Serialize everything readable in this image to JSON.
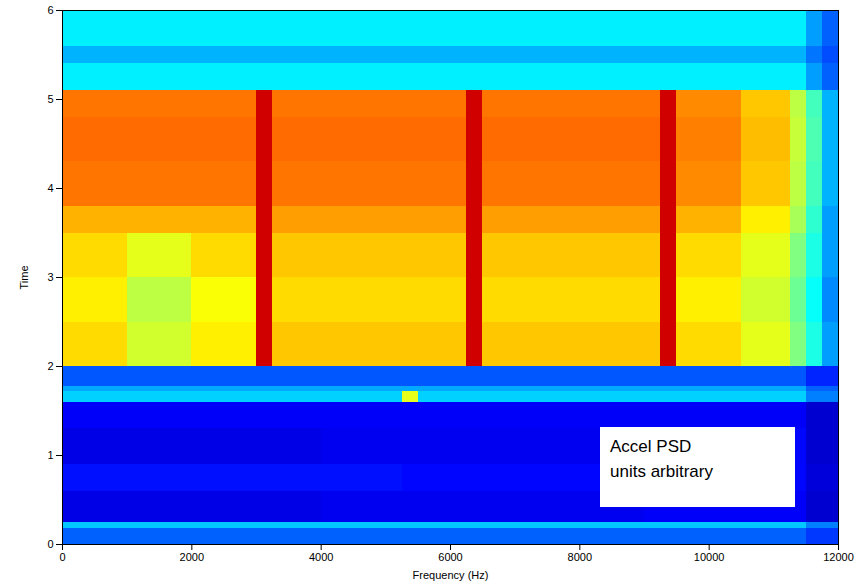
{
  "chart_data": {
    "type": "heatmap",
    "x_label": "Frequency (Hz)",
    "y_label": "Time",
    "annotations": [
      "Accel PSD",
      "units arbitrary"
    ],
    "xlim": [
      0,
      12000
    ],
    "ylim": [
      0,
      6
    ],
    "xticks": [
      0,
      2000,
      4000,
      6000,
      8000,
      10000,
      12000
    ],
    "yticks": [
      0,
      1,
      2,
      3,
      4,
      5,
      6
    ],
    "zlim": [
      0,
      100
    ],
    "x_edges": [
      0,
      250,
      500,
      750,
      1000,
      1250,
      1500,
      1750,
      2000,
      2250,
      2500,
      2750,
      3000,
      3250,
      3500,
      3750,
      4000,
      4250,
      4500,
      4750,
      5000,
      5250,
      5500,
      5750,
      6000,
      6250,
      6500,
      6750,
      7000,
      7250,
      7500,
      7750,
      8000,
      8250,
      8500,
      8750,
      9000,
      9250,
      9500,
      9750,
      10000,
      10250,
      10500,
      10750,
      11000,
      11250,
      11500,
      11750,
      12000
    ],
    "y_edges": [
      0,
      0.18,
      0.25,
      0.6,
      0.9,
      1.3,
      1.6,
      1.72,
      1.78,
      2.0,
      2.5,
      3.0,
      3.5,
      3.8,
      4.3,
      4.8,
      5.1,
      5.4,
      5.6,
      6
    ],
    "cells": [
      [
        22,
        22,
        22,
        22,
        22,
        22,
        22,
        22,
        22,
        22,
        22,
        22,
        22,
        22,
        22,
        22,
        22,
        22,
        22,
        22,
        22,
        22,
        22,
        22,
        22,
        22,
        22,
        22,
        22,
        22,
        22,
        22,
        22,
        22,
        22,
        22,
        22,
        22,
        22,
        22,
        22,
        22,
        22,
        22,
        22,
        22,
        18,
        18
      ],
      [
        32,
        32,
        32,
        32,
        32,
        32,
        32,
        32,
        32,
        32,
        32,
        32,
        32,
        32,
        32,
        32,
        32,
        32,
        32,
        32,
        32,
        32,
        32,
        32,
        32,
        32,
        32,
        32,
        32,
        32,
        32,
        32,
        32,
        32,
        32,
        32,
        32,
        32,
        32,
        32,
        32,
        32,
        32,
        32,
        32,
        32,
        25,
        25
      ],
      [
        10,
        10,
        10,
        10,
        10,
        10,
        10,
        10,
        10,
        10,
        10,
        10,
        10,
        10,
        10,
        10,
        11,
        11,
        11,
        11,
        11,
        11,
        11,
        11,
        11,
        11,
        11,
        11,
        11,
        11,
        11,
        11,
        11,
        11,
        11,
        11,
        12,
        12,
        12,
        12,
        12,
        12,
        12,
        12,
        12,
        12,
        8,
        8
      ],
      [
        14,
        14,
        14,
        14,
        14,
        14,
        14,
        14,
        14,
        14,
        14,
        14,
        14,
        14,
        14,
        14,
        14,
        14,
        14,
        14,
        14,
        13,
        13,
        13,
        13,
        13,
        13,
        13,
        13,
        13,
        13,
        13,
        13,
        13,
        13,
        13,
        13,
        13,
        13,
        13,
        13,
        13,
        13,
        13,
        13,
        13,
        9,
        9
      ],
      [
        10,
        10,
        10,
        10,
        10,
        10,
        10,
        10,
        10,
        10,
        10,
        10,
        10,
        10,
        10,
        10,
        11,
        11,
        11,
        11,
        11,
        11,
        11,
        11,
        11,
        11,
        11,
        11,
        11,
        11,
        11,
        11,
        11,
        11,
        11,
        11,
        13,
        13,
        13,
        13,
        13,
        13,
        13,
        13,
        13,
        13,
        8,
        8
      ],
      [
        12,
        12,
        12,
        12,
        12,
        12,
        12,
        12,
        12,
        12,
        12,
        12,
        12,
        12,
        12,
        12,
        12,
        12,
        12,
        12,
        12,
        12,
        12,
        12,
        12,
        12,
        12,
        12,
        12,
        12,
        12,
        12,
        12,
        12,
        12,
        12,
        12,
        12,
        12,
        12,
        12,
        12,
        12,
        12,
        12,
        12,
        8,
        8
      ],
      [
        33,
        33,
        33,
        33,
        33,
        33,
        33,
        33,
        33,
        33,
        33,
        33,
        33,
        33,
        33,
        33,
        33,
        33,
        33,
        33,
        33,
        60,
        33,
        33,
        33,
        33,
        33,
        33,
        33,
        33,
        33,
        33,
        33,
        33,
        33,
        33,
        33,
        33,
        33,
        33,
        33,
        33,
        33,
        33,
        33,
        33,
        25,
        25
      ],
      [
        29,
        29,
        29,
        29,
        29,
        29,
        29,
        29,
        29,
        29,
        29,
        29,
        29,
        29,
        29,
        29,
        29,
        29,
        29,
        29,
        29,
        29,
        29,
        29,
        29,
        29,
        29,
        29,
        29,
        29,
        29,
        29,
        29,
        29,
        29,
        29,
        29,
        29,
        29,
        29,
        29,
        29,
        29,
        29,
        29,
        29,
        22,
        22
      ],
      [
        21,
        21,
        21,
        21,
        21,
        21,
        21,
        21,
        21,
        21,
        21,
        21,
        21,
        21,
        21,
        21,
        21,
        21,
        21,
        21,
        21,
        21,
        21,
        21,
        21,
        21,
        21,
        21,
        21,
        21,
        21,
        21,
        21,
        21,
        21,
        21,
        21,
        21,
        21,
        21,
        21,
        21,
        21,
        21,
        21,
        21,
        16,
        16
      ],
      [
        66,
        66,
        66,
        66,
        58,
        58,
        58,
        58,
        64,
        64,
        64,
        64,
        92,
        68,
        68,
        68,
        68,
        68,
        68,
        68,
        68,
        68,
        68,
        68,
        68,
        92,
        68,
        68,
        68,
        68,
        68,
        68,
        68,
        68,
        68,
        68,
        68,
        92,
        66,
        66,
        66,
        66,
        60,
        60,
        60,
        50,
        40,
        28
      ],
      [
        64,
        64,
        64,
        64,
        56,
        56,
        56,
        56,
        62,
        62,
        62,
        62,
        92,
        66,
        66,
        66,
        66,
        66,
        66,
        66,
        66,
        66,
        66,
        66,
        66,
        92,
        66,
        66,
        66,
        66,
        66,
        66,
        66,
        66,
        66,
        66,
        66,
        92,
        64,
        64,
        64,
        64,
        58,
        58,
        58,
        48,
        38,
        26
      ],
      [
        66,
        66,
        66,
        66,
        60,
        60,
        60,
        60,
        66,
        66,
        66,
        66,
        92,
        68,
        68,
        68,
        68,
        68,
        68,
        68,
        68,
        68,
        68,
        68,
        68,
        92,
        68,
        68,
        68,
        68,
        68,
        68,
        68,
        68,
        68,
        68,
        68,
        92,
        66,
        66,
        66,
        66,
        60,
        60,
        60,
        50,
        40,
        28
      ],
      [
        70,
        70,
        70,
        70,
        70,
        70,
        70,
        70,
        70,
        70,
        70,
        70,
        92,
        72,
        72,
        72,
        72,
        72,
        72,
        72,
        72,
        72,
        72,
        72,
        72,
        92,
        72,
        72,
        72,
        72,
        72,
        72,
        72,
        72,
        72,
        72,
        72,
        92,
        70,
        70,
        70,
        70,
        64,
        64,
        64,
        54,
        42,
        28
      ],
      [
        76,
        76,
        76,
        76,
        76,
        76,
        76,
        76,
        76,
        76,
        76,
        76,
        92,
        76,
        76,
        76,
        76,
        76,
        76,
        76,
        76,
        76,
        76,
        76,
        76,
        92,
        76,
        76,
        76,
        76,
        76,
        76,
        76,
        76,
        76,
        76,
        76,
        92,
        74,
        74,
        74,
        74,
        68,
        68,
        68,
        56,
        44,
        30
      ],
      [
        77,
        77,
        77,
        77,
        77,
        77,
        77,
        77,
        77,
        77,
        77,
        77,
        92,
        77,
        77,
        77,
        77,
        77,
        77,
        77,
        77,
        77,
        77,
        77,
        77,
        92,
        77,
        77,
        77,
        77,
        77,
        77,
        77,
        77,
        77,
        77,
        77,
        92,
        75,
        75,
        75,
        75,
        69,
        69,
        69,
        57,
        45,
        30
      ],
      [
        76,
        76,
        76,
        76,
        76,
        76,
        76,
        76,
        76,
        76,
        76,
        76,
        92,
        76,
        76,
        76,
        76,
        76,
        76,
        76,
        76,
        76,
        76,
        76,
        76,
        92,
        76,
        76,
        76,
        76,
        76,
        76,
        76,
        76,
        76,
        76,
        76,
        92,
        74,
        74,
        74,
        74,
        68,
        68,
        68,
        56,
        44,
        30
      ],
      [
        36,
        36,
        36,
        36,
        36,
        36,
        36,
        36,
        36,
        36,
        36,
        36,
        36,
        36,
        36,
        36,
        36,
        36,
        36,
        36,
        36,
        36,
        36,
        36,
        36,
        36,
        36,
        36,
        36,
        36,
        36,
        36,
        36,
        36,
        36,
        36,
        36,
        36,
        36,
        36,
        36,
        36,
        36,
        36,
        36,
        36,
        28,
        22
      ],
      [
        30,
        30,
        30,
        30,
        30,
        30,
        30,
        30,
        30,
        30,
        30,
        30,
        30,
        30,
        30,
        30,
        30,
        30,
        30,
        30,
        30,
        30,
        30,
        30,
        30,
        30,
        30,
        30,
        30,
        30,
        30,
        30,
        30,
        30,
        30,
        30,
        30,
        30,
        30,
        30,
        30,
        30,
        30,
        30,
        30,
        30,
        24,
        20
      ],
      [
        36,
        36,
        36,
        36,
        36,
        36,
        36,
        36,
        36,
        36,
        36,
        36,
        36,
        36,
        36,
        36,
        36,
        36,
        36,
        36,
        36,
        36,
        36,
        36,
        36,
        36,
        36,
        36,
        36,
        36,
        36,
        36,
        36,
        36,
        36,
        36,
        36,
        36,
        36,
        36,
        36,
        36,
        36,
        36,
        36,
        36,
        28,
        22
      ]
    ]
  }
}
